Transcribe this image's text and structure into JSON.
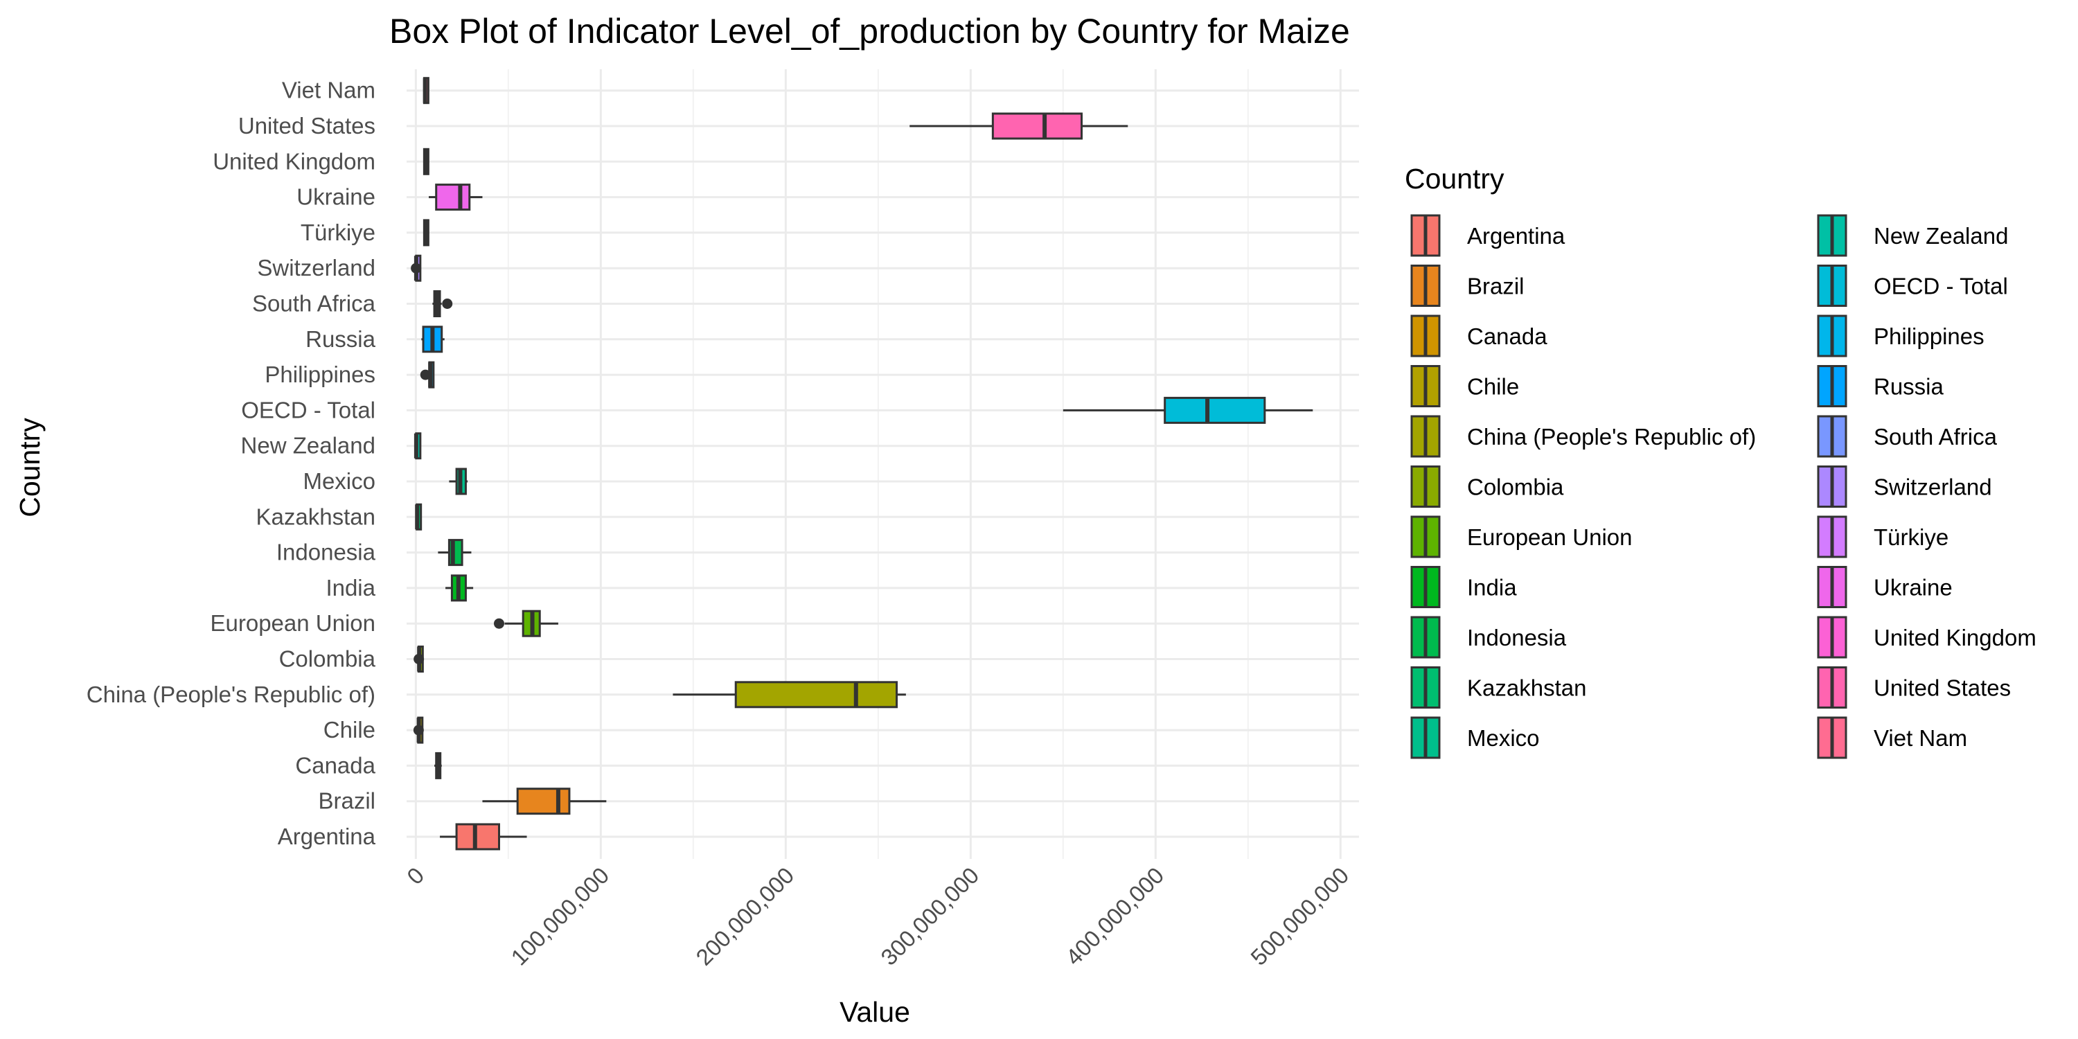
{
  "chart_data": {
    "type": "box",
    "title": "Box Plot of Indicator Level_of_production by Country for Maize",
    "xlabel": "Value",
    "ylabel": "Country",
    "xlim": [
      -5000000,
      510000000
    ],
    "x_ticks": [
      0,
      100000000,
      200000000,
      300000000,
      400000000,
      500000000
    ],
    "x_tick_labels": [
      "0",
      "100,000,000",
      "200,000,000",
      "300,000,000",
      "400,000,000",
      "500,000,000"
    ],
    "grid": true,
    "legend_title": "Country",
    "legend_position": "right",
    "series": [
      {
        "name": "Argentina",
        "color": "#F8766D",
        "min": 13000000,
        "q1": 22000000,
        "median": 32000000,
        "q3": 45000000,
        "max": 60000000,
        "outliers": []
      },
      {
        "name": "Brazil",
        "color": "#E7851E",
        "min": 36000000,
        "q1": 55000000,
        "median": 77000000,
        "q3": 83000000,
        "max": 103000000,
        "outliers": []
      },
      {
        "name": "Canada",
        "color": "#D09400",
        "min": 10000000,
        "q1": 11000000,
        "median": 11800000,
        "q3": 13000000,
        "max": 14000000,
        "outliers": []
      },
      {
        "name": "Chile",
        "color": "#B2A100",
        "min": 1000000,
        "q1": 1300000,
        "median": 1600000,
        "q3": 1900000,
        "max": 2300000,
        "outliers": [
          1500000
        ]
      },
      {
        "name": "China (People's Republic of)",
        "color": "#A3A500",
        "min": 139000000,
        "q1": 173000000,
        "median": 238000000,
        "q3": 260000000,
        "max": 265000000,
        "outliers": []
      },
      {
        "name": "Colombia",
        "color": "#8AAB00",
        "min": 1200000,
        "q1": 1500000,
        "median": 1800000,
        "q3": 2100000,
        "max": 2400000,
        "outliers": [
          1600000
        ]
      },
      {
        "name": "European Union",
        "color": "#5EB300",
        "min": 48000000,
        "q1": 58000000,
        "median": 63000000,
        "q3": 67000000,
        "max": 77000000,
        "outliers": [
          45000000
        ]
      },
      {
        "name": "India",
        "color": "#00B81F",
        "min": 16000000,
        "q1": 19500000,
        "median": 23000000,
        "q3": 27000000,
        "max": 31000000,
        "outliers": []
      },
      {
        "name": "Indonesia",
        "color": "#00BB4E",
        "min": 12000000,
        "q1": 18000000,
        "median": 20000000,
        "q3": 25000000,
        "max": 30000000,
        "outliers": []
      },
      {
        "name": "Kazakhstan",
        "color": "#00BE70",
        "min": 400000,
        "q1": 500000,
        "median": 700000,
        "q3": 900000,
        "max": 1100000,
        "outliers": []
      },
      {
        "name": "Mexico",
        "color": "#00BF8C",
        "min": 18000000,
        "q1": 22000000,
        "median": 24000000,
        "q3": 27000000,
        "max": 28000000,
        "outliers": []
      },
      {
        "name": "New Zealand",
        "color": "#00C0A5",
        "min": 150000,
        "q1": 180000,
        "median": 200000,
        "q3": 220000,
        "max": 260000,
        "outliers": []
      },
      {
        "name": "OECD - Total",
        "color": "#00BCD8",
        "min": 350000000,
        "q1": 405000000,
        "median": 428000000,
        "q3": 459000000,
        "max": 485000000,
        "outliers": []
      },
      {
        "name": "Philippines",
        "color": "#00B6EB",
        "min": 6800000,
        "q1": 7300000,
        "median": 7800000,
        "q3": 8200000,
        "max": 8600000,
        "outliers": [
          5200000
        ]
      },
      {
        "name": "Russia",
        "color": "#00A5FF",
        "min": 3000000,
        "q1": 4000000,
        "median": 9000000,
        "q3": 14000000,
        "max": 15500000,
        "outliers": []
      },
      {
        "name": "South Africa",
        "color": "#7997FF",
        "min": 9000000,
        "q1": 10000000,
        "median": 11500000,
        "q3": 13000000,
        "max": 14000000,
        "outliers": [
          17000000
        ]
      },
      {
        "name": "Switzerland",
        "color": "#AC88FF",
        "min": 150000,
        "q1": 180000,
        "median": 200000,
        "q3": 220000,
        "max": 250000,
        "outliers": [
          100000
        ]
      },
      {
        "name": "Türkiye",
        "color": "#D37CFF",
        "min": 4000000,
        "q1": 4500000,
        "median": 5500000,
        "q3": 6200000,
        "max": 6800000,
        "outliers": []
      },
      {
        "name": "Ukraine",
        "color": "#EF67EB",
        "min": 7000000,
        "q1": 11000000,
        "median": 24000000,
        "q3": 29000000,
        "max": 36000000,
        "outliers": []
      },
      {
        "name": "United Kingdom",
        "color": "#FC61D5",
        "min": 4000000,
        "q1": 4500000,
        "median": 5500000,
        "q3": 6200000,
        "max": 6800000,
        "outliers": []
      },
      {
        "name": "United States",
        "color": "#FF64B0",
        "min": 267000000,
        "q1": 312000000,
        "median": 340000000,
        "q3": 360000000,
        "max": 385000000,
        "outliers": []
      },
      {
        "name": "Viet Nam",
        "color": "#FF6C91",
        "min": 4000000,
        "q1": 4500000,
        "median": 5000000,
        "q3": 5500000,
        "max": 5800000,
        "outliers": []
      }
    ]
  }
}
